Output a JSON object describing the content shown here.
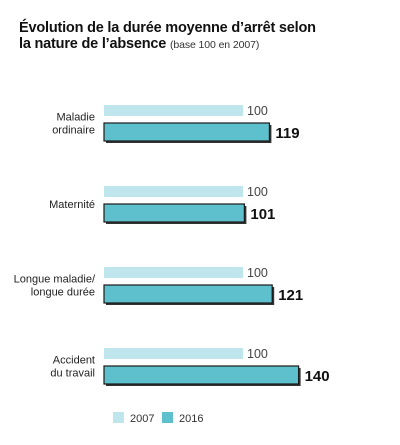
{
  "title_line1": "Évolution de la durée moyenne d’arrêt selon",
  "title_line2": "la nature de l’absence",
  "subtitle": "(base 100 en 2007)",
  "colors": {
    "series_2007": "#bfe6ec",
    "series_2016": "#5ec0cc",
    "outline": "#1a1a1a"
  },
  "chart_data": {
    "type": "bar",
    "orientation": "horizontal",
    "title": "Évolution de la durée moyenne d’arrêt selon la nature de l’absence",
    "subtitle": "(base 100 en 2007)",
    "categories": [
      [
        "Maladie",
        "ordinaire"
      ],
      [
        "Maternité"
      ],
      [
        "Longue maladie/",
        "longue durée"
      ],
      [
        "Accident",
        "du travail"
      ]
    ],
    "series": [
      {
        "name": "2007",
        "values": [
          100,
          100,
          100,
          100
        ]
      },
      {
        "name": "2016",
        "values": [
          119,
          101,
          121,
          140
        ]
      }
    ],
    "value_labels": {
      "2007": [
        "100",
        "100",
        "100",
        "100"
      ],
      "2016": [
        "119",
        "101",
        "121",
        "140"
      ]
    },
    "xlim": [
      0,
      140
    ],
    "legend_position": "bottom-left",
    "grid": false
  }
}
